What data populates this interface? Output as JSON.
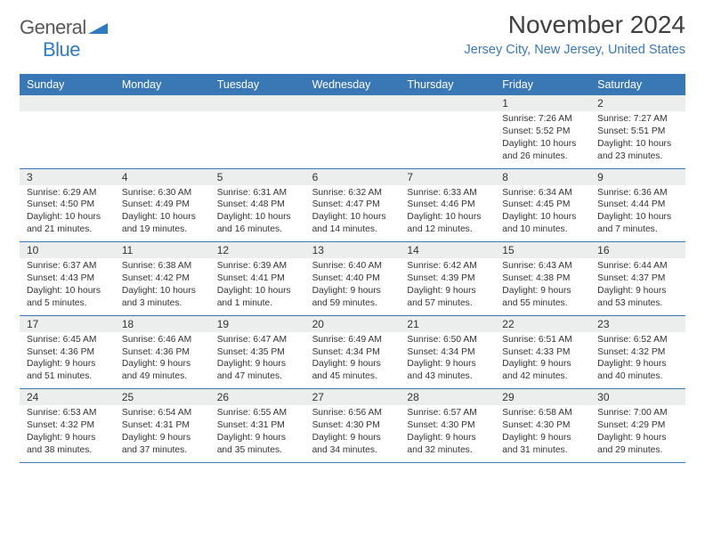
{
  "logo": {
    "text1": "General",
    "text2": "Blue"
  },
  "title": "November 2024",
  "subtitle": "Jersey City, New Jersey, United States",
  "colors": {
    "header_bg": "#3a78b5",
    "header_text": "#ffffff",
    "daynum_bg": "#eceded",
    "subtitle": "#3a78b5",
    "rule": "#3a78b5"
  },
  "type": "calendar-table",
  "dayNames": [
    "Sunday",
    "Monday",
    "Tuesday",
    "Wednesday",
    "Thursday",
    "Friday",
    "Saturday"
  ],
  "weeks": [
    [
      null,
      null,
      null,
      null,
      null,
      {
        "n": "1",
        "sr": "7:26 AM",
        "ss": "5:52 PM",
        "dl": "10 hours and 26 minutes."
      },
      {
        "n": "2",
        "sr": "7:27 AM",
        "ss": "5:51 PM",
        "dl": "10 hours and 23 minutes."
      }
    ],
    [
      {
        "n": "3",
        "sr": "6:29 AM",
        "ss": "4:50 PM",
        "dl": "10 hours and 21 minutes."
      },
      {
        "n": "4",
        "sr": "6:30 AM",
        "ss": "4:49 PM",
        "dl": "10 hours and 19 minutes."
      },
      {
        "n": "5",
        "sr": "6:31 AM",
        "ss": "4:48 PM",
        "dl": "10 hours and 16 minutes."
      },
      {
        "n": "6",
        "sr": "6:32 AM",
        "ss": "4:47 PM",
        "dl": "10 hours and 14 minutes."
      },
      {
        "n": "7",
        "sr": "6:33 AM",
        "ss": "4:46 PM",
        "dl": "10 hours and 12 minutes."
      },
      {
        "n": "8",
        "sr": "6:34 AM",
        "ss": "4:45 PM",
        "dl": "10 hours and 10 minutes."
      },
      {
        "n": "9",
        "sr": "6:36 AM",
        "ss": "4:44 PM",
        "dl": "10 hours and 7 minutes."
      }
    ],
    [
      {
        "n": "10",
        "sr": "6:37 AM",
        "ss": "4:43 PM",
        "dl": "10 hours and 5 minutes."
      },
      {
        "n": "11",
        "sr": "6:38 AM",
        "ss": "4:42 PM",
        "dl": "10 hours and 3 minutes."
      },
      {
        "n": "12",
        "sr": "6:39 AM",
        "ss": "4:41 PM",
        "dl": "10 hours and 1 minute."
      },
      {
        "n": "13",
        "sr": "6:40 AM",
        "ss": "4:40 PM",
        "dl": "9 hours and 59 minutes."
      },
      {
        "n": "14",
        "sr": "6:42 AM",
        "ss": "4:39 PM",
        "dl": "9 hours and 57 minutes."
      },
      {
        "n": "15",
        "sr": "6:43 AM",
        "ss": "4:38 PM",
        "dl": "9 hours and 55 minutes."
      },
      {
        "n": "16",
        "sr": "6:44 AM",
        "ss": "4:37 PM",
        "dl": "9 hours and 53 minutes."
      }
    ],
    [
      {
        "n": "17",
        "sr": "6:45 AM",
        "ss": "4:36 PM",
        "dl": "9 hours and 51 minutes."
      },
      {
        "n": "18",
        "sr": "6:46 AM",
        "ss": "4:36 PM",
        "dl": "9 hours and 49 minutes."
      },
      {
        "n": "19",
        "sr": "6:47 AM",
        "ss": "4:35 PM",
        "dl": "9 hours and 47 minutes."
      },
      {
        "n": "20",
        "sr": "6:49 AM",
        "ss": "4:34 PM",
        "dl": "9 hours and 45 minutes."
      },
      {
        "n": "21",
        "sr": "6:50 AM",
        "ss": "4:34 PM",
        "dl": "9 hours and 43 minutes."
      },
      {
        "n": "22",
        "sr": "6:51 AM",
        "ss": "4:33 PM",
        "dl": "9 hours and 42 minutes."
      },
      {
        "n": "23",
        "sr": "6:52 AM",
        "ss": "4:32 PM",
        "dl": "9 hours and 40 minutes."
      }
    ],
    [
      {
        "n": "24",
        "sr": "6:53 AM",
        "ss": "4:32 PM",
        "dl": "9 hours and 38 minutes."
      },
      {
        "n": "25",
        "sr": "6:54 AM",
        "ss": "4:31 PM",
        "dl": "9 hours and 37 minutes."
      },
      {
        "n": "26",
        "sr": "6:55 AM",
        "ss": "4:31 PM",
        "dl": "9 hours and 35 minutes."
      },
      {
        "n": "27",
        "sr": "6:56 AM",
        "ss": "4:30 PM",
        "dl": "9 hours and 34 minutes."
      },
      {
        "n": "28",
        "sr": "6:57 AM",
        "ss": "4:30 PM",
        "dl": "9 hours and 32 minutes."
      },
      {
        "n": "29",
        "sr": "6:58 AM",
        "ss": "4:30 PM",
        "dl": "9 hours and 31 minutes."
      },
      {
        "n": "30",
        "sr": "7:00 AM",
        "ss": "4:29 PM",
        "dl": "9 hours and 29 minutes."
      }
    ]
  ],
  "labels": {
    "sunrise": "Sunrise: ",
    "sunset": "Sunset: ",
    "daylight": "Daylight: "
  }
}
